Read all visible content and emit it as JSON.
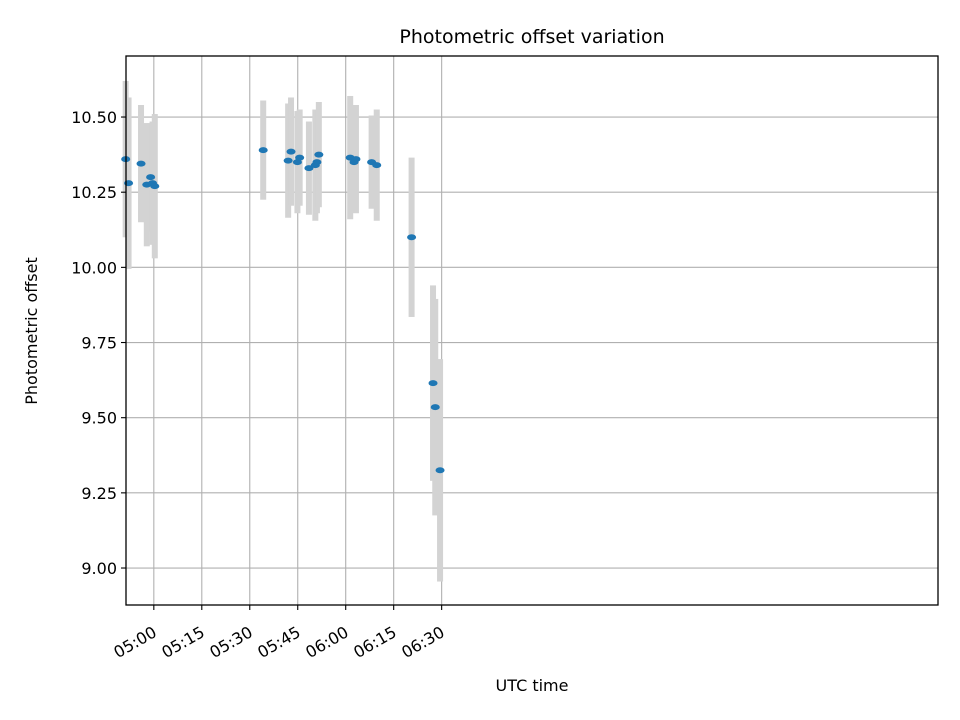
{
  "chart_data": {
    "type": "scatter",
    "title": "Photometric offset variation",
    "xlabel": "UTC time",
    "ylabel": "Photometric offset",
    "x_unit": "minutes since 00:00 UTC",
    "xlim": [
      291.3,
      545.2
    ],
    "ylim": [
      8.877,
      10.703
    ],
    "grid": true,
    "x_ticks": [
      {
        "value": 300,
        "label": "05:00"
      },
      {
        "value": 315,
        "label": "05:15"
      },
      {
        "value": 330,
        "label": "05:30"
      },
      {
        "value": 345,
        "label": "05:45"
      },
      {
        "value": 360,
        "label": "06:00"
      },
      {
        "value": 375,
        "label": "06:15"
      },
      {
        "value": 390,
        "label": "06:30"
      }
    ],
    "y_ticks": [
      {
        "value": 9.0,
        "label": "9.00"
      },
      {
        "value": 9.25,
        "label": "9.25"
      },
      {
        "value": 9.5,
        "label": "9.50"
      },
      {
        "value": 9.75,
        "label": "9.75"
      },
      {
        "value": 10.0,
        "label": "10.00"
      },
      {
        "value": 10.25,
        "label": "10.25"
      },
      {
        "value": 10.5,
        "label": "10.50"
      }
    ],
    "marker_color": "#1f77b4",
    "errorbar_color": "#d3d3d3",
    "points": [
      {
        "x": 291.2,
        "y": 10.36,
        "err": 0.26
      },
      {
        "x": 292.1,
        "y": 10.28,
        "err": 0.285
      },
      {
        "x": 296.0,
        "y": 10.345,
        "err": 0.195
      },
      {
        "x": 297.8,
        "y": 10.275,
        "err": 0.205
      },
      {
        "x": 299.0,
        "y": 10.3,
        "err": 0.18
      },
      {
        "x": 299.6,
        "y": 10.28,
        "err": 0.205
      },
      {
        "x": 300.3,
        "y": 10.27,
        "err": 0.24
      },
      {
        "x": 334.2,
        "y": 10.39,
        "err": 0.165
      },
      {
        "x": 342.0,
        "y": 10.355,
        "err": 0.19
      },
      {
        "x": 342.9,
        "y": 10.385,
        "err": 0.18
      },
      {
        "x": 344.9,
        "y": 10.35,
        "err": 0.17
      },
      {
        "x": 345.6,
        "y": 10.365,
        "err": 0.16
      },
      {
        "x": 348.5,
        "y": 10.33,
        "err": 0.155
      },
      {
        "x": 350.5,
        "y": 10.34,
        "err": 0.185
      },
      {
        "x": 351.0,
        "y": 10.35,
        "err": 0.17
      },
      {
        "x": 351.6,
        "y": 10.375,
        "err": 0.175
      },
      {
        "x": 361.4,
        "y": 10.365,
        "err": 0.205
      },
      {
        "x": 362.6,
        "y": 10.35,
        "err": 0.15
      },
      {
        "x": 363.2,
        "y": 10.36,
        "err": 0.18
      },
      {
        "x": 368.1,
        "y": 10.35,
        "err": 0.155
      },
      {
        "x": 369.7,
        "y": 10.34,
        "err": 0.185
      },
      {
        "x": 380.6,
        "y": 10.1,
        "err": 0.265
      },
      {
        "x": 387.3,
        "y": 9.615,
        "err": 0.325
      },
      {
        "x": 388.0,
        "y": 9.535,
        "err": 0.36
      },
      {
        "x": 389.5,
        "y": 9.325,
        "err": 0.37
      }
    ]
  }
}
